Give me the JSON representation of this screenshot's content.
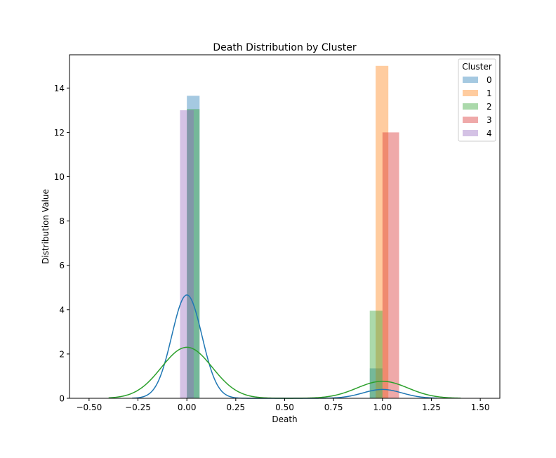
{
  "chart_data": {
    "type": "bar",
    "title": "Death Distribution by Cluster",
    "xlabel": "Death",
    "ylabel": "Distribution Value",
    "xlim": [
      -0.6,
      1.6
    ],
    "ylim": [
      0,
      15.5
    ],
    "x_ticks": [
      -0.5,
      -0.25,
      0.0,
      0.25,
      0.5,
      0.75,
      1.0,
      1.25,
      1.5
    ],
    "x_tick_labels": [
      "−0.50",
      "−0.25",
      "0.00",
      "0.25",
      "0.50",
      "0.75",
      "1.00",
      "1.25",
      "1.50"
    ],
    "y_ticks": [
      0,
      2,
      4,
      6,
      8,
      10,
      12,
      14
    ],
    "y_tick_labels": [
      "0",
      "2",
      "4",
      "6",
      "8",
      "10",
      "12",
      "14"
    ],
    "grid": false,
    "legend": {
      "title": "Cluster",
      "placement": "top-right"
    },
    "series": [
      {
        "name": "0",
        "color": "#1f77b4",
        "bars": [
          {
            "x0": 0.0,
            "x1": 0.065,
            "height": 13.65
          },
          {
            "x0": 0.935,
            "x1": 1.0,
            "height": 1.35
          }
        ],
        "kde": {
          "mean": 0.0,
          "sd": 0.077,
          "weight_left": 0.9,
          "weight_right": 0.1,
          "mean_right": 1.0,
          "sd_right": 0.1
        }
      },
      {
        "name": "1",
        "color": "#ff7f0e",
        "bars": [
          {
            "x0": 0.965,
            "x1": 1.03,
            "height": 15.0
          }
        ]
      },
      {
        "name": "2",
        "color": "#2ca02c",
        "bars": [
          {
            "x0": 0.0,
            "x1": 0.065,
            "height": 13.05
          },
          {
            "x0": 0.935,
            "x1": 1.0,
            "height": 3.95
          }
        ],
        "kde": {
          "mean": 0.0,
          "sd": 0.13,
          "weight_left": 0.75,
          "weight_right": 0.25,
          "mean_right": 1.0,
          "sd_right": 0.13
        }
      },
      {
        "name": "3",
        "color": "#d62728",
        "bars": [
          {
            "x0": 1.0,
            "x1": 1.085,
            "height": 12.0
          }
        ]
      },
      {
        "name": "4",
        "color": "#9467bd",
        "bars": [
          {
            "x0": -0.035,
            "x1": 0.035,
            "height": 13.0
          }
        ]
      }
    ],
    "kde_range": {
      "series_0": [
        -0.28,
        1.28
      ],
      "series_2": [
        -0.4,
        1.4
      ]
    }
  }
}
